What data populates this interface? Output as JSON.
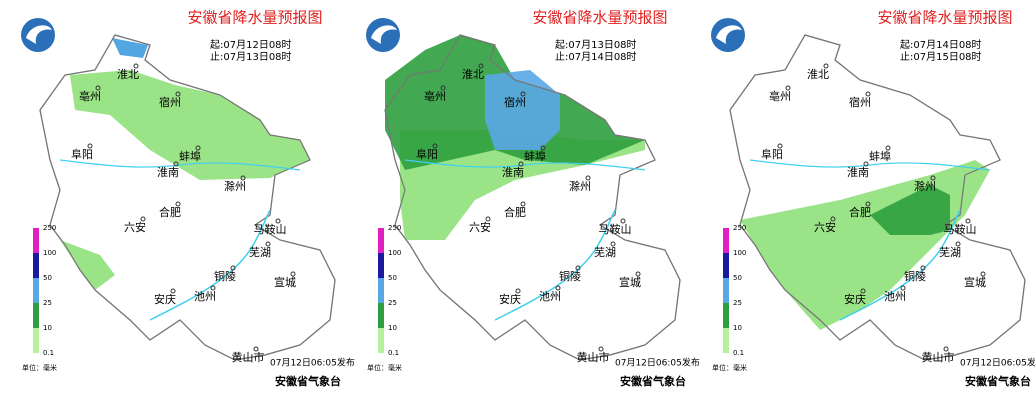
{
  "panels": [
    {
      "title": "安徽省降水量预报图",
      "start": "起:07月12日08时",
      "end": "止:07月13日08时"
    },
    {
      "title": "安徽省降水量预报图",
      "start": "起:07月13日08时",
      "end": "止:07月14日08时"
    },
    {
      "title": "安徽省降水量预报图",
      "start": "起:07月14日08时",
      "end": "止:07月15日08时"
    }
  ],
  "cities": [
    "淮北",
    "亳州",
    "宿州",
    "阜阳",
    "蚌埠",
    "淮南",
    "滁州",
    "合肥",
    "六安",
    "马鞍山",
    "芜湖",
    "铜陵",
    "宣城",
    "安庆",
    "池州",
    "黄山市"
  ],
  "legend": {
    "ticks": [
      "250",
      "100",
      "50",
      "25",
      "10",
      "0.1"
    ],
    "unit": "单位：毫米"
  },
  "issued": "07月12日06:05发布",
  "org": "安徽省气象台"
}
